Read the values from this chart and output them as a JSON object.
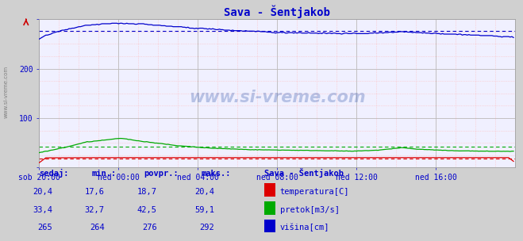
{
  "title": "Sava - Šentjakob",
  "fig_bg_color": "#d0d0d0",
  "plot_bg_color": "#f0f0ff",
  "xlim": [
    0,
    288
  ],
  "ylim": [
    0,
    300
  ],
  "xtick_labels": [
    "sob 20:00",
    "ned 00:00",
    "ned 04:00",
    "ned 08:00",
    "ned 12:00",
    "ned 16:00"
  ],
  "xtick_positions": [
    0,
    48,
    96,
    144,
    192,
    240
  ],
  "watermark": "www.si-vreme.com",
  "legend_title": "Sava - Šentjakob",
  "legend_items": [
    {
      "label": "temperatura[C]",
      "color": "#dd0000"
    },
    {
      "label": "pretok[m3/s]",
      "color": "#00aa00"
    },
    {
      "label": "višina[cm]",
      "color": "#0000cc"
    }
  ],
  "table_headers": [
    "sedaj:",
    "min.:",
    "povpr.:",
    "maks.:"
  ],
  "table_data": [
    [
      "20,4",
      "17,6",
      "18,7",
      "20,4"
    ],
    [
      "33,4",
      "32,7",
      "42,5",
      "59,1"
    ],
    [
      "265",
      "264",
      "276",
      "292"
    ]
  ],
  "temp_avg": 18.7,
  "flow_avg": 42.5,
  "height_avg": 276
}
